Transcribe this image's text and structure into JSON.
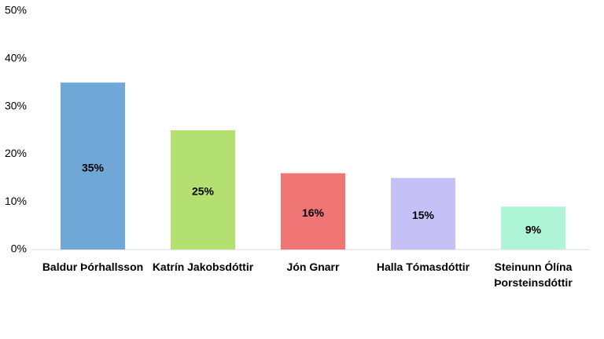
{
  "chart_data": {
    "type": "bar",
    "categories": [
      "Baldur Þórhallsson",
      "Katrín Jakobsdóttir",
      "Jón Gnarr",
      "Halla Tómasdóttir",
      "Steinunn Ólína Þorsteinsdóttir"
    ],
    "values": [
      35,
      25,
      16,
      15,
      9
    ],
    "value_labels": [
      "35%",
      "25%",
      "16%",
      "15%",
      "9%"
    ],
    "colors": [
      "#6fa8d6",
      "#b3e070",
      "#f07575",
      "#c5c0f5",
      "#aef5d8"
    ],
    "ylim": [
      0,
      50
    ],
    "yticks": [
      {
        "value": 0,
        "label": "0%"
      },
      {
        "value": 10,
        "label": "10%"
      },
      {
        "value": 20,
        "label": "20%"
      },
      {
        "value": 30,
        "label": "30%"
      },
      {
        "value": 40,
        "label": "40%"
      },
      {
        "value": 50,
        "label": "50%"
      }
    ]
  }
}
